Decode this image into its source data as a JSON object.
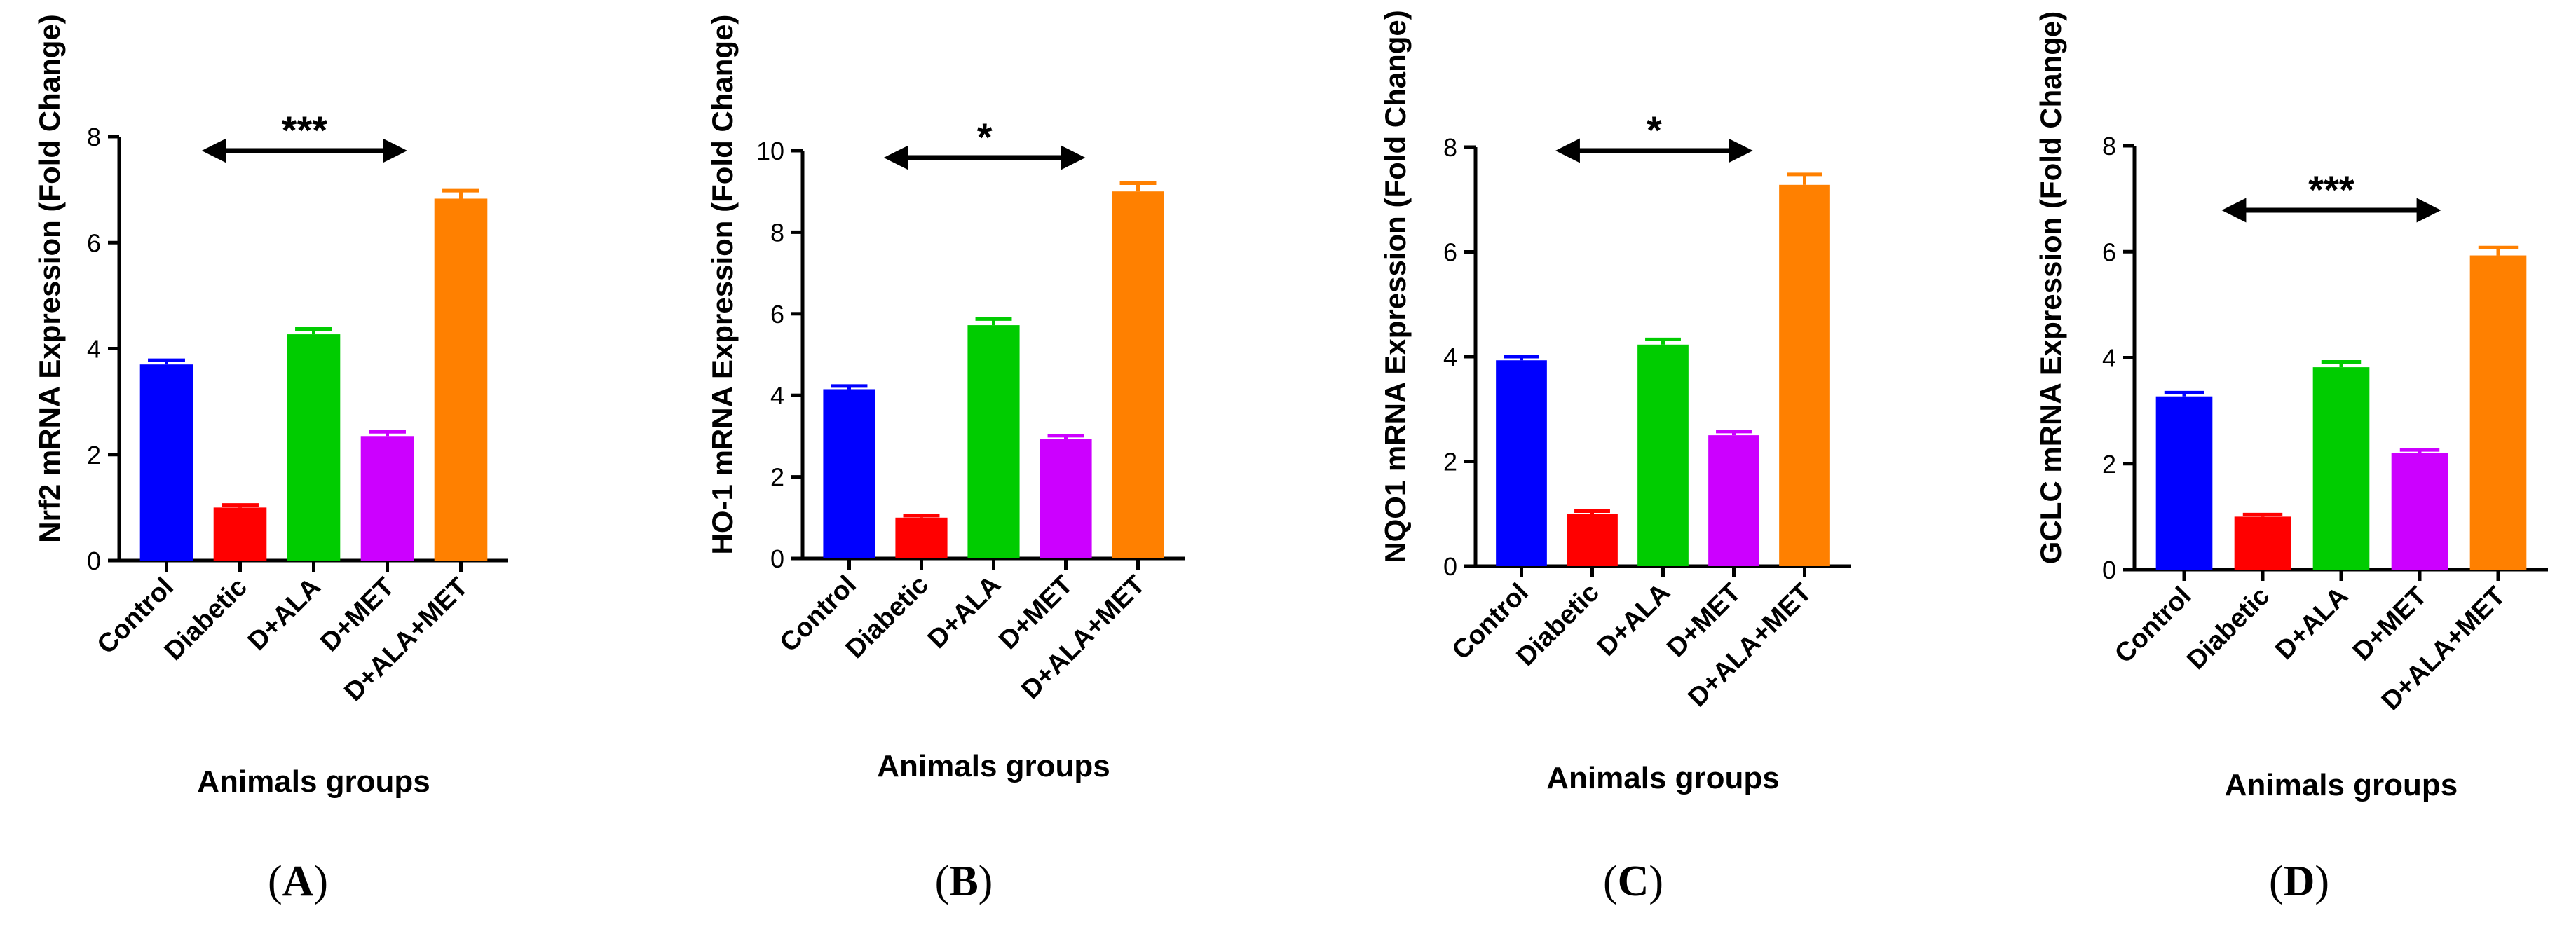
{
  "chart_data": [
    {
      "type": "bar",
      "panel_label": "A",
      "ylabel": "Nrf2 mRNA Expression (Fold Change)",
      "xlabel": "Animals groups",
      "categories": [
        "Control",
        "Diabetic",
        "D+ALA",
        "D+MET",
        "D+ALA+MET"
      ],
      "values": [
        3.7,
        1.0,
        4.27,
        2.35,
        6.83
      ],
      "errors": [
        0.08,
        0.05,
        0.1,
        0.08,
        0.15
      ],
      "colors": [
        "#0000ff",
        "#ff0000",
        "#00cc00",
        "#cc00ff",
        "#ff8000"
      ],
      "ylim": [
        0,
        8
      ],
      "yticks": [
        "0",
        "2",
        "4",
        "6",
        "8"
      ],
      "significance": {
        "label": "***",
        "from": "Diabetic",
        "to": "D+MET"
      }
    },
    {
      "type": "bar",
      "panel_label": "B",
      "ylabel": "HO-1 mRNA Expression (Fold Change)",
      "xlabel": "Animals groups",
      "categories": [
        "Control",
        "Diabetic",
        "D+ALA",
        "D+MET",
        "D+ALA+MET"
      ],
      "values": [
        4.15,
        1.0,
        5.72,
        2.93,
        9.0
      ],
      "errors": [
        0.08,
        0.05,
        0.15,
        0.08,
        0.2
      ],
      "colors": [
        "#0000ff",
        "#ff0000",
        "#00cc00",
        "#cc00ff",
        "#ff8000"
      ],
      "ylim": [
        0,
        10
      ],
      "yticks": [
        "0",
        "2",
        "4",
        "6",
        "8",
        "10"
      ],
      "significance": {
        "label": "*",
        "from": "Diabetic",
        "to": "D+MET"
      }
    },
    {
      "type": "bar",
      "panel_label": "C",
      "ylabel": "NQO1 mRNA Expression (Fold Change)",
      "xlabel": "Animals groups",
      "categories": [
        "Control",
        "Diabetic",
        "D+ALA",
        "D+MET",
        "D+ALA+MET"
      ],
      "values": [
        3.93,
        1.0,
        4.23,
        2.5,
        7.28
      ],
      "errors": [
        0.07,
        0.05,
        0.1,
        0.07,
        0.2
      ],
      "colors": [
        "#0000ff",
        "#ff0000",
        "#00cc00",
        "#cc00ff",
        "#ff8000"
      ],
      "ylim": [
        0,
        8
      ],
      "yticks": [
        "0",
        "2",
        "4",
        "6",
        "8"
      ],
      "significance": {
        "label": "*",
        "from": "Diabetic",
        "to": "D+MET"
      }
    },
    {
      "type": "bar",
      "panel_label": "D",
      "ylabel": "GCLC mRNA Expression (Fold Change)",
      "xlabel": "Animals groups",
      "categories": [
        "Control",
        "Diabetic",
        "D+ALA",
        "D+MET",
        "D+ALA+MET"
      ],
      "values": [
        3.27,
        1.0,
        3.82,
        2.2,
        5.93
      ],
      "errors": [
        0.07,
        0.04,
        0.1,
        0.06,
        0.15
      ],
      "colors": [
        "#0000ff",
        "#ff0000",
        "#00cc00",
        "#cc00ff",
        "#ff8000"
      ],
      "ylim": [
        0,
        8
      ],
      "yticks": [
        "0",
        "2",
        "4",
        "6",
        "8"
      ],
      "significance": {
        "label": "***",
        "from": "Diabetic",
        "to": "D+MET"
      }
    }
  ]
}
